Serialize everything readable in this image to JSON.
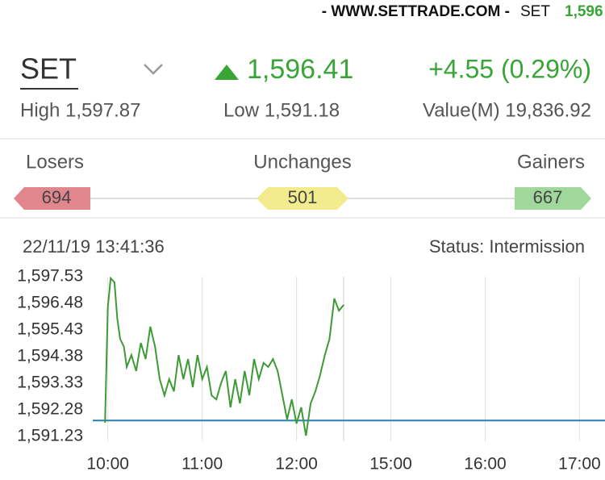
{
  "ticker": {
    "site": "- WWW.SETTRADE.COM -",
    "symbol": "SET",
    "value": "1,596"
  },
  "header": {
    "symbol": "SET",
    "last": "1,596.41",
    "change": "+4.55 (0.29%)",
    "high": "High 1,597.87",
    "low": "Low 1,591.18",
    "value": "Value(M) 19,836.92"
  },
  "breadth": {
    "losers_label": "Losers",
    "losers": "694",
    "unchanged_label": "Unchanges",
    "unchanged": "501",
    "gainers_label": "Gainers",
    "gainers": "667"
  },
  "status": {
    "time": "22/11/19 13:41:36",
    "status": "Status: Intermission"
  },
  "chart_data": {
    "type": "line",
    "x": [
      9.97,
      10.0,
      10.03,
      10.07,
      10.1,
      10.13,
      10.17,
      10.2,
      10.25,
      10.3,
      10.35,
      10.4,
      10.45,
      10.5,
      10.55,
      10.6,
      10.65,
      10.7,
      10.75,
      10.8,
      10.85,
      10.9,
      10.95,
      11.0,
      11.05,
      11.1,
      11.15,
      11.2,
      11.25,
      11.3,
      11.35,
      11.4,
      11.45,
      11.5,
      11.55,
      11.6,
      11.65,
      11.7,
      11.75,
      11.8,
      11.85,
      11.9,
      11.95,
      12.0,
      12.05,
      12.1,
      12.15,
      12.2,
      12.25,
      12.3,
      12.35,
      12.4,
      12.45,
      12.5
    ],
    "series": [
      {
        "color": "#3d9b35",
        "values": [
          1591.77,
          1596.35,
          1597.47,
          1597.31,
          1595.88,
          1595.08,
          1594.77,
          1593.97,
          1594.44,
          1593.81,
          1594.92,
          1594.28,
          1595.56,
          1594.77,
          1593.49,
          1592.85,
          1593.49,
          1593.01,
          1594.44,
          1593.49,
          1594.28,
          1593.17,
          1594.44,
          1593.49,
          1593.97,
          1592.85,
          1592.69,
          1593.33,
          1593.81,
          1592.38,
          1593.49,
          1592.53,
          1593.81,
          1592.85,
          1594.28,
          1593.49,
          1594.13,
          1593.97,
          1594.28,
          1593.81,
          1592.85,
          1591.9,
          1592.69,
          1591.74,
          1592.38,
          1591.26,
          1592.53,
          1593.01,
          1593.65,
          1594.44,
          1595.08,
          1596.67,
          1596.19,
          1596.42
        ]
      }
    ],
    "reference_line": {
      "value": 1591.86,
      "color": "#2a7fb0"
    },
    "ylim": [
      1591.23,
      1597.53
    ],
    "yticks": [
      {
        "value": 1591.23,
        "label": "1,591.23"
      },
      {
        "value": 1592.28,
        "label": "1,592.28"
      },
      {
        "value": 1593.33,
        "label": "1,593.33"
      },
      {
        "value": 1594.38,
        "label": "1,594.38"
      },
      {
        "value": 1595.43,
        "label": "1,595.43"
      },
      {
        "value": 1596.48,
        "label": "1,596.48"
      },
      {
        "value": 1597.53,
        "label": "1,597.53"
      }
    ],
    "xlim": [
      9.84,
      17.27
    ],
    "session_break": [
      12.5,
      14.5
    ],
    "xticks": [
      {
        "value": 10,
        "label": "10:00"
      },
      {
        "value": 11,
        "label": "11:00"
      },
      {
        "value": 12,
        "label": "12:00"
      },
      {
        "value": 15,
        "label": "15:00"
      },
      {
        "value": 16,
        "label": "16:00"
      },
      {
        "value": 17,
        "label": "17:00"
      }
    ],
    "grid": true
  }
}
